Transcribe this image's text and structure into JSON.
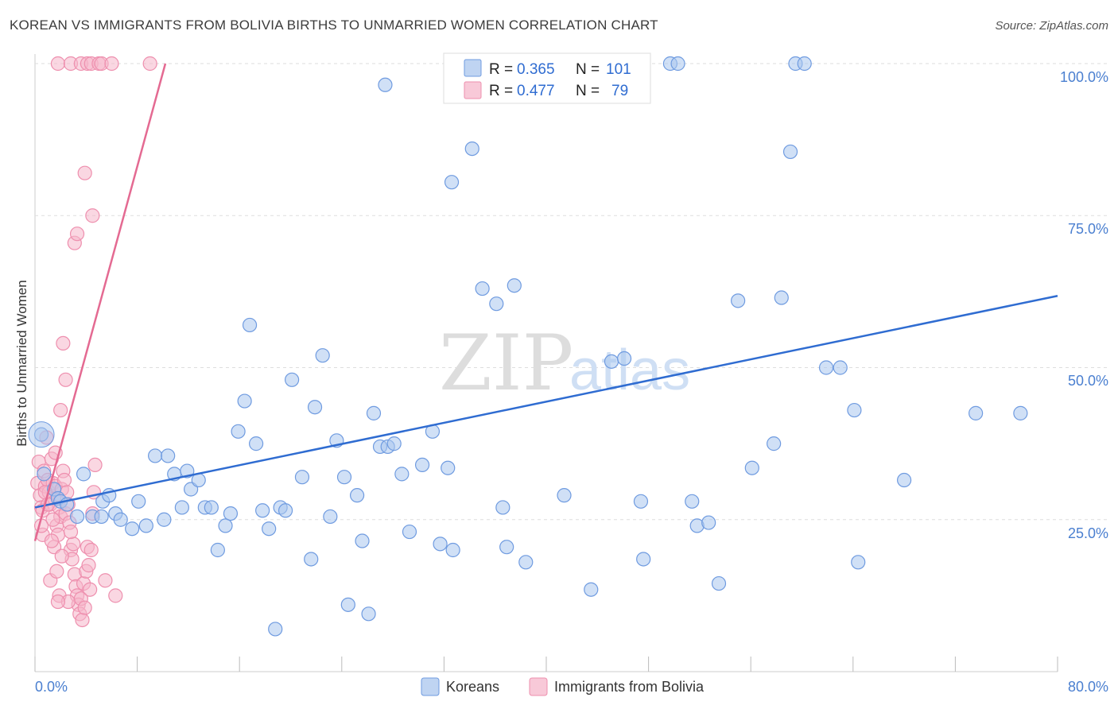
{
  "title": "KOREAN VS IMMIGRANTS FROM BOLIVIA BIRTHS TO UNMARRIED WOMEN CORRELATION CHART",
  "source": "Source: ZipAtlas.com",
  "watermark": {
    "zip": "ZIP",
    "atlas": "atlas"
  },
  "colors": {
    "blue_fill": "#a9c6ee",
    "blue_stroke": "#6f9be0",
    "blue_line": "#2f6cd1",
    "pink_fill": "#f5b7cb",
    "pink_stroke": "#ee8fae",
    "pink_line": "#e46a92",
    "grid": "#dddddd",
    "tick_text": "#4a7fd0"
  },
  "chart_data": {
    "type": "scatter",
    "title": "KOREAN VS IMMIGRANTS FROM BOLIVIA BIRTHS TO UNMARRIED WOMEN CORRELATION CHART",
    "xlabel": "",
    "ylabel": "Births to Unmarried Women",
    "xlim": [
      0,
      80
    ],
    "ylim": [
      0,
      100
    ],
    "x_tick_labels": {
      "min": "0.0%",
      "max": "80.0%"
    },
    "y_ticks": [
      {
        "value": 25,
        "label": "25.0%"
      },
      {
        "value": 50,
        "label": "50.0%"
      },
      {
        "value": 75,
        "label": "75.0%"
      },
      {
        "value": 100,
        "label": "100.0%"
      }
    ],
    "legend": {
      "entries": [
        {
          "r_label": "R =",
          "r_value": "0.365",
          "n_label": "N =",
          "n_value": "101"
        },
        {
          "r_label": "R =",
          "r_value": "0.477",
          "n_label": "N =",
          "n_value": "79"
        }
      ]
    },
    "series": [
      {
        "name": "Koreans",
        "trend": {
          "x0": 0,
          "y0": 27.0,
          "x1": 80,
          "y1": 61.8
        },
        "points": [
          [
            0.5,
            39.0
          ],
          [
            0.7,
            32.5
          ],
          [
            1.5,
            30.0
          ],
          [
            1.8,
            28.5
          ],
          [
            2.0,
            28.0
          ],
          [
            2.5,
            27.5
          ],
          [
            3.3,
            25.5
          ],
          [
            3.8,
            32.5
          ],
          [
            4.5,
            25.5
          ],
          [
            5.2,
            25.5
          ],
          [
            5.3,
            28.0
          ],
          [
            5.8,
            29.0
          ],
          [
            6.3,
            26.0
          ],
          [
            6.7,
            25.0
          ],
          [
            7.6,
            23.5
          ],
          [
            8.1,
            28.0
          ],
          [
            8.7,
            24.0
          ],
          [
            9.4,
            35.5
          ],
          [
            10.1,
            25.0
          ],
          [
            10.4,
            35.5
          ],
          [
            10.9,
            32.5
          ],
          [
            11.5,
            27.0
          ],
          [
            11.9,
            33.0
          ],
          [
            12.2,
            30.0
          ],
          [
            12.8,
            31.5
          ],
          [
            13.3,
            27.0
          ],
          [
            13.8,
            27.0
          ],
          [
            14.3,
            20.0
          ],
          [
            14.9,
            24.0
          ],
          [
            15.3,
            26.0
          ],
          [
            15.9,
            39.5
          ],
          [
            16.4,
            44.5
          ],
          [
            16.8,
            57.0
          ],
          [
            17.3,
            37.5
          ],
          [
            17.8,
            26.5
          ],
          [
            18.3,
            23.5
          ],
          [
            18.8,
            7.0
          ],
          [
            19.2,
            27.0
          ],
          [
            19.6,
            26.5
          ],
          [
            20.1,
            48.0
          ],
          [
            20.9,
            32.0
          ],
          [
            21.6,
            18.5
          ],
          [
            21.9,
            43.5
          ],
          [
            22.5,
            52.0
          ],
          [
            23.1,
            25.5
          ],
          [
            23.6,
            38.0
          ],
          [
            24.2,
            32.0
          ],
          [
            24.5,
            11.0
          ],
          [
            25.2,
            29.0
          ],
          [
            25.6,
            21.5
          ],
          [
            26.1,
            9.5
          ],
          [
            26.5,
            42.5
          ],
          [
            27.0,
            37.0
          ],
          [
            27.4,
            96.5
          ],
          [
            27.6,
            37.0
          ],
          [
            28.1,
            37.5
          ],
          [
            28.7,
            32.5
          ],
          [
            29.3,
            23.0
          ],
          [
            30.3,
            34.0
          ],
          [
            31.1,
            39.5
          ],
          [
            31.7,
            21.0
          ],
          [
            32.3,
            33.5
          ],
          [
            32.7,
            20.0
          ],
          [
            33.6,
            100.0
          ],
          [
            34.2,
            86.0
          ],
          [
            35.0,
            63.0
          ],
          [
            36.1,
            60.5
          ],
          [
            36.6,
            27.0
          ],
          [
            36.9,
            20.5
          ],
          [
            37.5,
            63.5
          ],
          [
            38.4,
            18.0
          ],
          [
            39.6,
            100.0
          ],
          [
            41.4,
            29.0
          ],
          [
            43.5,
            13.5
          ],
          [
            45.1,
            51.0
          ],
          [
            46.1,
            51.5
          ],
          [
            47.4,
            28.0
          ],
          [
            47.6,
            18.5
          ],
          [
            49.7,
            100.0
          ],
          [
            50.3,
            100.0
          ],
          [
            51.4,
            28.0
          ],
          [
            51.8,
            24.0
          ],
          [
            52.7,
            24.5
          ],
          [
            53.5,
            14.5
          ],
          [
            55.0,
            61.0
          ],
          [
            56.1,
            33.5
          ],
          [
            57.8,
            37.5
          ],
          [
            58.4,
            61.5
          ],
          [
            59.1,
            85.5
          ],
          [
            59.5,
            100.0
          ],
          [
            60.2,
            100.0
          ],
          [
            61.9,
            50.0
          ],
          [
            63.0,
            50.0
          ],
          [
            64.1,
            43.0
          ],
          [
            64.4,
            18.0
          ],
          [
            68.0,
            31.5
          ],
          [
            73.6,
            42.5
          ],
          [
            77.1,
            42.5
          ],
          [
            32.6,
            80.5
          ]
        ]
      },
      {
        "name": "Immigrants from Bolivia",
        "trend": {
          "x0": 0,
          "y0": 21.5,
          "x1": 10.2,
          "y1": 100.0
        },
        "points": [
          [
            0.2,
            31.0
          ],
          [
            0.3,
            34.5
          ],
          [
            0.4,
            29.0
          ],
          [
            0.5,
            27.0
          ],
          [
            0.6,
            26.5
          ],
          [
            0.7,
            33.0
          ],
          [
            0.8,
            30.5
          ],
          [
            0.9,
            38.5
          ],
          [
            1.0,
            31.5
          ],
          [
            1.1,
            29.5
          ],
          [
            1.2,
            27.5
          ],
          [
            1.3,
            35.0
          ],
          [
            1.4,
            31.0
          ],
          [
            1.5,
            28.5
          ],
          [
            1.6,
            30.5
          ],
          [
            1.7,
            24.0
          ],
          [
            1.8,
            22.5
          ],
          [
            1.9,
            27.0
          ],
          [
            2.0,
            25.5
          ],
          [
            2.1,
            30.0
          ],
          [
            2.2,
            33.0
          ],
          [
            2.3,
            31.5
          ],
          [
            2.4,
            26.0
          ],
          [
            2.5,
            29.5
          ],
          [
            2.6,
            27.5
          ],
          [
            2.7,
            24.5
          ],
          [
            2.8,
            20.0
          ],
          [
            2.9,
            18.5
          ],
          [
            3.0,
            21.0
          ],
          [
            3.1,
            16.0
          ],
          [
            3.2,
            14.0
          ],
          [
            3.3,
            12.5
          ],
          [
            3.4,
            11.0
          ],
          [
            3.5,
            9.5
          ],
          [
            3.6,
            12.0
          ],
          [
            3.7,
            8.5
          ],
          [
            3.8,
            14.5
          ],
          [
            3.9,
            10.5
          ],
          [
            4.0,
            16.5
          ],
          [
            4.1,
            20.5
          ],
          [
            4.2,
            17.5
          ],
          [
            4.3,
            13.5
          ],
          [
            4.4,
            20.0
          ],
          [
            4.5,
            26.0
          ],
          [
            4.6,
            29.5
          ],
          [
            4.7,
            34.0
          ],
          [
            2.0,
            43.0
          ],
          [
            2.2,
            54.0
          ],
          [
            2.4,
            48.0
          ],
          [
            3.1,
            70.5
          ],
          [
            3.3,
            72.0
          ],
          [
            3.9,
            82.0
          ],
          [
            4.5,
            75.0
          ],
          [
            1.5,
            20.5
          ],
          [
            1.9,
            12.5
          ],
          [
            2.6,
            11.5
          ],
          [
            5.5,
            15.0
          ],
          [
            6.3,
            12.5
          ],
          [
            1.2,
            15.0
          ],
          [
            1.8,
            11.5
          ],
          [
            0.6,
            22.5
          ],
          [
            1.0,
            27.5
          ],
          [
            2.8,
            23.0
          ],
          [
            1.6,
            36.0
          ],
          [
            0.8,
            29.5
          ],
          [
            1.4,
            25.0
          ],
          [
            1.7,
            16.5
          ],
          [
            2.1,
            19.0
          ],
          [
            0.5,
            24.0
          ],
          [
            1.3,
            21.5
          ],
          [
            1.8,
            100.0
          ],
          [
            2.8,
            100.0
          ],
          [
            3.6,
            100.0
          ],
          [
            4.1,
            100.0
          ],
          [
            4.4,
            100.0
          ],
          [
            5.0,
            100.0
          ],
          [
            5.2,
            100.0
          ],
          [
            6.0,
            100.0
          ],
          [
            9.0,
            100.0
          ]
        ]
      }
    ]
  },
  "bottom_legend": {
    "blue_label": "Koreans",
    "pink_label": "Immigrants from Bolivia"
  }
}
